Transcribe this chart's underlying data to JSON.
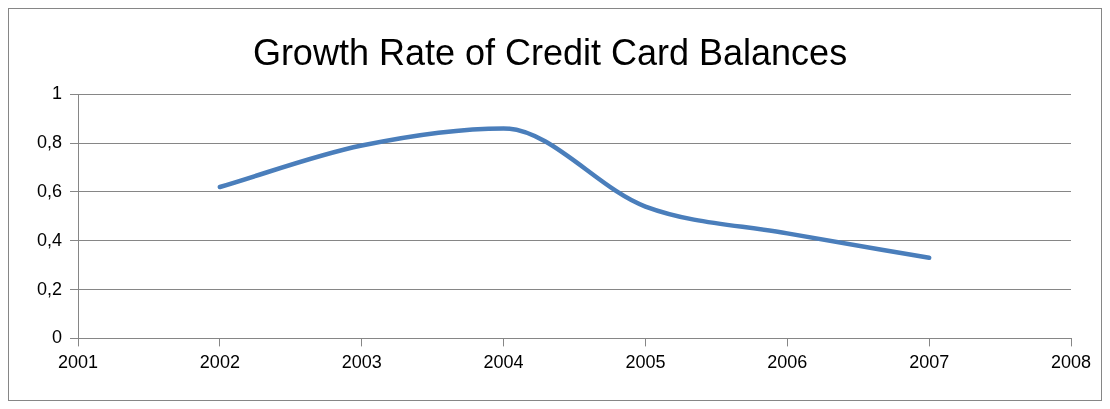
{
  "chart_data": {
    "type": "line",
    "title": "Growth Rate of Credit Card Balances",
    "x": [
      2002,
      2003,
      2004,
      2005,
      2006,
      2007
    ],
    "series": [
      {
        "color": "#4a7ebb",
        "values": [
          0.62,
          0.79,
          0.86,
          0.54,
          0.43,
          0.33
        ]
      }
    ],
    "xlim": [
      2001,
      2008
    ],
    "xticks": [
      2001,
      2002,
      2003,
      2004,
      2005,
      2006,
      2007,
      2008
    ],
    "ylim": [
      0,
      1
    ],
    "yticks": [
      {
        "value": 0,
        "label": "0"
      },
      {
        "value": 0.2,
        "label": "0,2"
      },
      {
        "value": 0.4,
        "label": "0,4"
      },
      {
        "value": 0.6,
        "label": "0,6"
      },
      {
        "value": 0.8,
        "label": "0,8"
      },
      {
        "value": 1,
        "label": "1"
      }
    ],
    "grid": "y",
    "legend": false,
    "marker": "none",
    "line_style": "solid"
  }
}
